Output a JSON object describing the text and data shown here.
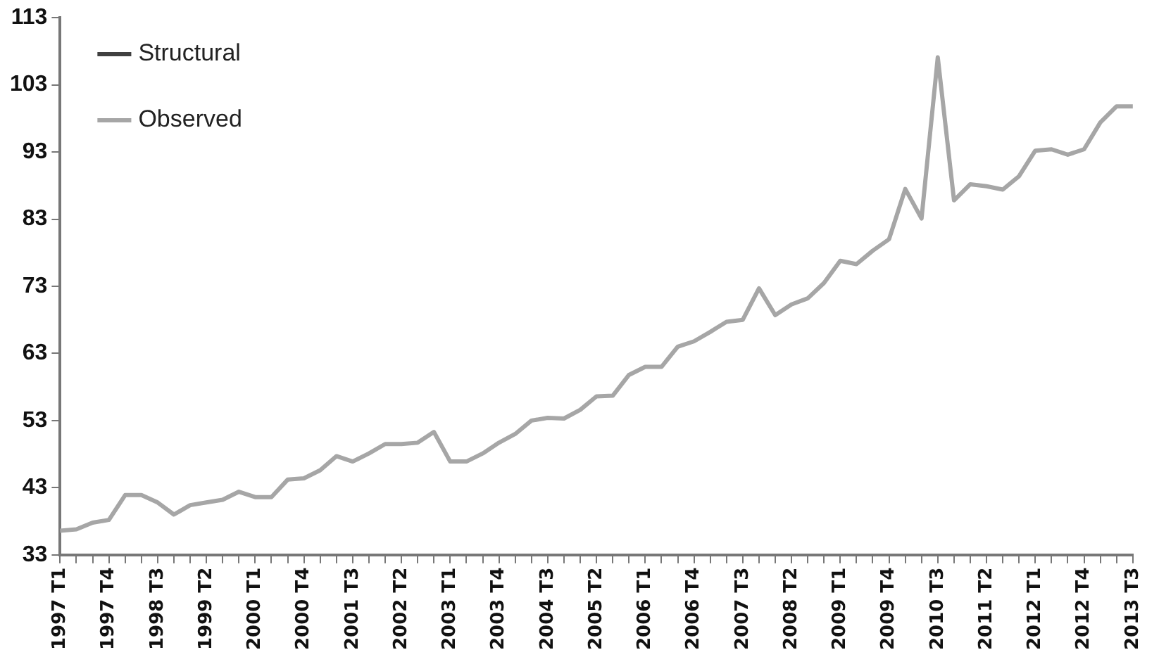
{
  "chart_data": {
    "type": "line",
    "categories": [
      "1997 T1",
      null,
      null,
      "1997 T4",
      null,
      null,
      "1998 T3",
      null,
      null,
      "1999 T2",
      null,
      null,
      "2000 T1",
      null,
      null,
      "2000 T4",
      null,
      null,
      "2001 T3",
      null,
      null,
      "2002 T2",
      null,
      null,
      "2003 T1",
      null,
      null,
      "2003 T4",
      null,
      null,
      "2004 T3",
      null,
      null,
      "2005 T2",
      null,
      null,
      "2006 T1",
      null,
      null,
      "2006 T4",
      null,
      null,
      "2007 T3",
      null,
      null,
      "2008 T2",
      null,
      null,
      "2009 T1",
      null,
      null,
      "2009 T4",
      null,
      null,
      "2010 T3",
      null,
      null,
      "2011 T2",
      null,
      null,
      "2012 T1",
      null,
      null,
      "2012 T4",
      null,
      null,
      "2013 T3"
    ],
    "series": [
      {
        "name": "Structural",
        "color": "#404040",
        "values": [
          null,
          null,
          null,
          null,
          null,
          null,
          null,
          null,
          null,
          null,
          null,
          null,
          null,
          null,
          null,
          null,
          null,
          null,
          null,
          null,
          null,
          null,
          null,
          null,
          null,
          null,
          null,
          null,
          null,
          null,
          null,
          null,
          null,
          null,
          null,
          null,
          null,
          null,
          null,
          null,
          null,
          null,
          null,
          null,
          null,
          null,
          null,
          null,
          null,
          null,
          null,
          null,
          null,
          null,
          null,
          null,
          null,
          null,
          null,
          null,
          null,
          null,
          null,
          null,
          null,
          null,
          null
        ]
      },
      {
        "name": "Observed",
        "color": "#a6a6a6",
        "values": [
          36.6,
          36.8,
          37.8,
          38.2,
          41.9,
          41.9,
          40.8,
          39.0,
          40.4,
          40.8,
          41.2,
          42.4,
          41.6,
          41.6,
          44.2,
          44.4,
          45.6,
          47.7,
          46.9,
          48.1,
          49.5,
          49.5,
          49.7,
          51.3,
          46.9,
          46.9,
          48.1,
          49.7,
          51.0,
          53.0,
          53.4,
          53.3,
          54.6,
          56.6,
          56.7,
          59.8,
          61.0,
          61.0,
          64.0,
          64.8,
          66.2,
          67.7,
          68.0,
          72.7,
          68.7,
          70.3,
          71.2,
          73.5,
          76.8,
          76.3,
          78.3,
          80.0,
          87.5,
          83.1,
          107.1,
          85.8,
          88.2,
          87.9,
          87.4,
          89.4,
          93.2,
          93.4,
          92.6,
          93.4,
          97.4,
          99.8,
          99.8
        ]
      }
    ],
    "ylim": [
      33,
      113
    ],
    "yticks": [
      33,
      43,
      53,
      63,
      73,
      83,
      93,
      103,
      113
    ],
    "grid": false,
    "legend": "top left",
    "marker": "none",
    "line_style": "solid"
  }
}
